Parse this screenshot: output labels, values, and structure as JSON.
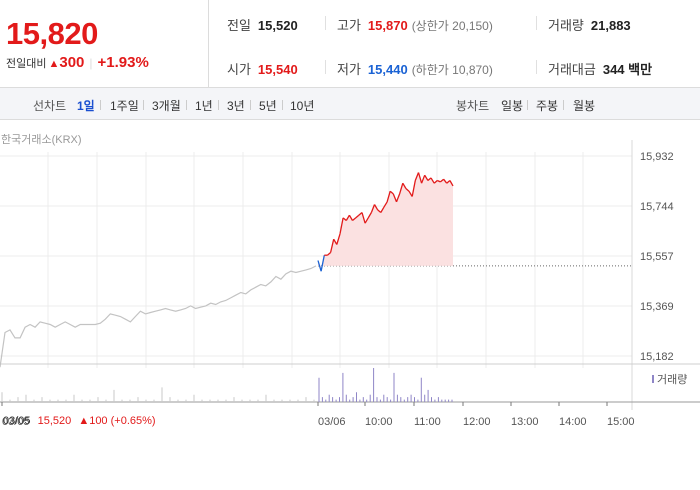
{
  "quote": {
    "price": "15,820",
    "change_label": "전일대비",
    "change_arrow": "▲",
    "change_value": "300",
    "change_pct": "+1.93%"
  },
  "stats": {
    "prev_close_label": "전일",
    "prev_close": "15,520",
    "high_label": "고가",
    "high": "15,870",
    "upper_limit_label": "(상한가",
    "upper_limit": "20,150)",
    "volume_label": "거래량",
    "volume": "21,883",
    "open_label": "시가",
    "open": "15,540",
    "low_label": "저가",
    "low": "15,440",
    "lower_limit_label": "(하한가",
    "lower_limit": "10,870)",
    "trade_value_label": "거래대금",
    "trade_value": "344 백만"
  },
  "period_tabs": {
    "header": "선차트",
    "items": [
      "1일",
      "1주일",
      "3개월",
      "1년",
      "3년",
      "5년",
      "10년"
    ],
    "active": "1일"
  },
  "candle_tabs": {
    "header": "봉차트",
    "items": [
      "일봉",
      "주봉",
      "월봉"
    ]
  },
  "chart": {
    "source": "한국거래소(KRX)",
    "volume_legend": "거래량",
    "footer_date": "03/05",
    "footer_price": "15,520",
    "footer_change": "▲100 (+0.65%)",
    "colors": {
      "up": "#e21a1a",
      "down": "#1a62d4",
      "prev_day": "#c3c3c3",
      "fill": "#fbe1e1",
      "volume": "#8f86c7"
    }
  },
  "chart_data": {
    "type": "line",
    "title": "",
    "xlabel": "",
    "ylabel": "",
    "yticks": [
      "15,932",
      "15,744",
      "15,557",
      "15,369",
      "15,182"
    ],
    "ylim": [
      15182,
      15932
    ],
    "xticks": [
      "03/05",
      "03/06",
      "10:00",
      "11:00",
      "12:00",
      "13:00",
      "14:00",
      "15:00"
    ],
    "reference_price": 15520,
    "series": [
      {
        "segment": "03/05",
        "values": [
          15140,
          15270,
          15280,
          15250,
          15250,
          15290,
          15300,
          15290,
          15310,
          15305,
          15300,
          15290,
          15300,
          15310,
          15300,
          15290,
          15300,
          15300,
          15300,
          15300,
          15305,
          15320,
          15340,
          15335,
          15330,
          15320,
          15310,
          15330,
          15350,
          15340,
          15345,
          15350,
          15355,
          15360,
          15355,
          15350,
          15355,
          15360,
          15370,
          15360,
          15365,
          15370,
          15380,
          15375,
          15385,
          15390,
          15400,
          15410,
          15420,
          15415,
          15430,
          15440,
          15450,
          15445,
          15460,
          15480,
          15470,
          15490,
          15500,
          15495,
          15500,
          15505,
          15510,
          15520
        ]
      },
      {
        "segment": "03/06",
        "values": [
          15540,
          15500,
          15560,
          15560,
          15570,
          15620,
          15600,
          15640,
          15700,
          15690,
          15710,
          15690,
          15700,
          15710,
          15720,
          15680,
          15700,
          15720,
          15750,
          15730,
          15720,
          15740,
          15760,
          15800,
          15790,
          15760,
          15790,
          15830,
          15810,
          15800,
          15780,
          15840,
          15870,
          15830,
          15860,
          15840,
          15850,
          15830,
          15840,
          15835,
          15845,
          15830,
          15840,
          15820
        ]
      }
    ],
    "volume": [
      {
        "segment": "03/05",
        "values": [
          4,
          1,
          2,
          3,
          1,
          2,
          1,
          1,
          1,
          3,
          1,
          1,
          2,
          1,
          5,
          1,
          1,
          2,
          1,
          1,
          6,
          2,
          1,
          1,
          3,
          1,
          1,
          1,
          1,
          2,
          1,
          1,
          1,
          3,
          1,
          1,
          1,
          1,
          2,
          1
        ]
      },
      {
        "segment": "03/06",
        "values": [
          10,
          2,
          1,
          3,
          2,
          1,
          2,
          12,
          3,
          1,
          2,
          4,
          1,
          2,
          1,
          3,
          14,
          2,
          1,
          3,
          2,
          1,
          12,
          3,
          2,
          1,
          2,
          3,
          2,
          1,
          10,
          3,
          5,
          2,
          1,
          2,
          1,
          1,
          1,
          1
        ]
      }
    ]
  }
}
